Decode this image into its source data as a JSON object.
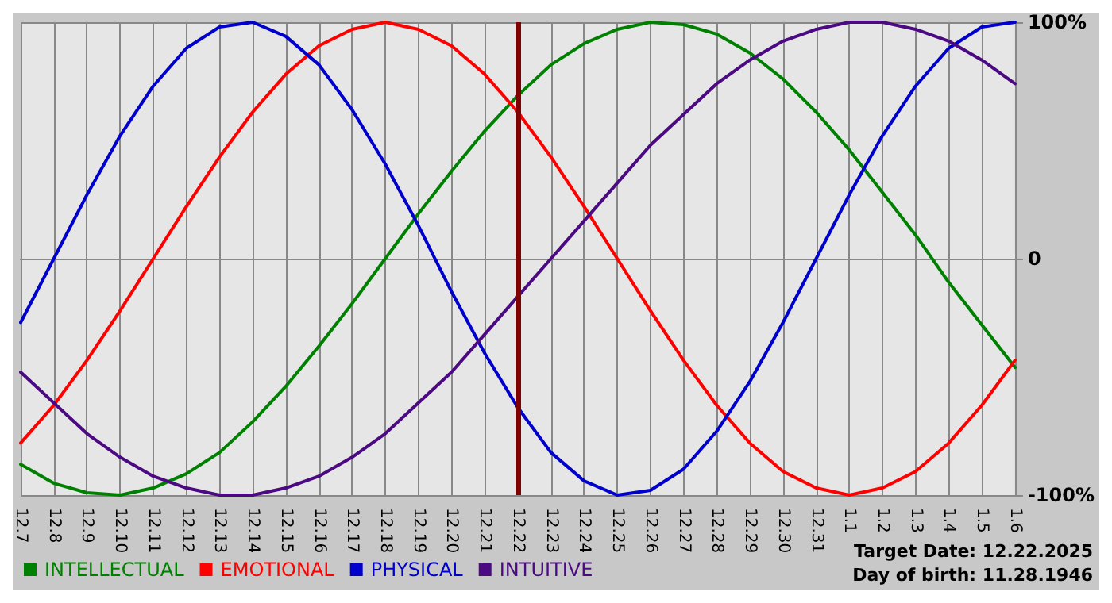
{
  "chart_data": {
    "type": "line",
    "categories": [
      "12.7",
      "12.8",
      "12.9",
      "12.10",
      "12.11",
      "12.12",
      "12.13",
      "12.14",
      "12.15",
      "12.16",
      "12.17",
      "12.18",
      "12.19",
      "12.20",
      "12.21",
      "12.22",
      "12.23",
      "12.24",
      "12.25",
      "12.26",
      "12.27",
      "12.28",
      "12.29",
      "12.30",
      "12.31",
      "1.1",
      "1.2",
      "1.3",
      "1.4",
      "1.5",
      "1.6"
    ],
    "series": [
      {
        "name": "INTELLECTUAL",
        "color": "#008000",
        "values": [
          -87,
          -95,
          -99,
          -100,
          -97,
          -91,
          -82,
          -69,
          -54,
          -37,
          -19,
          0,
          19,
          37,
          54,
          69,
          82,
          91,
          97,
          100,
          99,
          95,
          87,
          76,
          62,
          46,
          28,
          10,
          -10,
          -28,
          -46
        ]
      },
      {
        "name": "EMOTIONAL",
        "color": "#ff0000",
        "values": [
          -78,
          -62,
          -43,
          -22,
          0,
          22,
          43,
          62,
          78,
          90,
          97,
          100,
          97,
          90,
          78,
          62,
          43,
          22,
          0,
          -22,
          -43,
          -62,
          -78,
          -90,
          -97,
          -100,
          -97,
          -90,
          -78,
          -62,
          -43
        ]
      },
      {
        "name": "PHYSICAL",
        "color": "#0000cc",
        "values": [
          -27,
          0,
          27,
          52,
          73,
          89,
          98,
          100,
          94,
          82,
          63,
          40,
          14,
          -14,
          -40,
          -63,
          -82,
          -94,
          -100,
          -98,
          -89,
          -73,
          -52,
          -27,
          0,
          27,
          52,
          73,
          89,
          98,
          100
        ]
      },
      {
        "name": "INTUITIVE",
        "color": "#4b0a82",
        "values": [
          -48,
          -61,
          -74,
          -84,
          -92,
          -97,
          -100,
          -100,
          -97,
          -92,
          -84,
          -74,
          -61,
          -48,
          -32,
          -16,
          0,
          16,
          32,
          48,
          61,
          74,
          84,
          92,
          97,
          100,
          100,
          97,
          92,
          84,
          74
        ]
      }
    ],
    "ylim": [
      -100,
      100
    ],
    "yticks": [
      {
        "value": -100,
        "label": "-100%"
      },
      {
        "value": 0,
        "label": "0"
      },
      {
        "value": 100,
        "label": "100%"
      }
    ],
    "ref_lines": [
      {
        "axis": "x",
        "value": "12.22",
        "color": "#800000"
      }
    ],
    "annotations": [
      "Target Date: 12.22.2025",
      "Day of birth: 11.28.1946"
    ],
    "grid": true,
    "legend": "bottom left",
    "marker": "none",
    "line_style": "solid"
  }
}
